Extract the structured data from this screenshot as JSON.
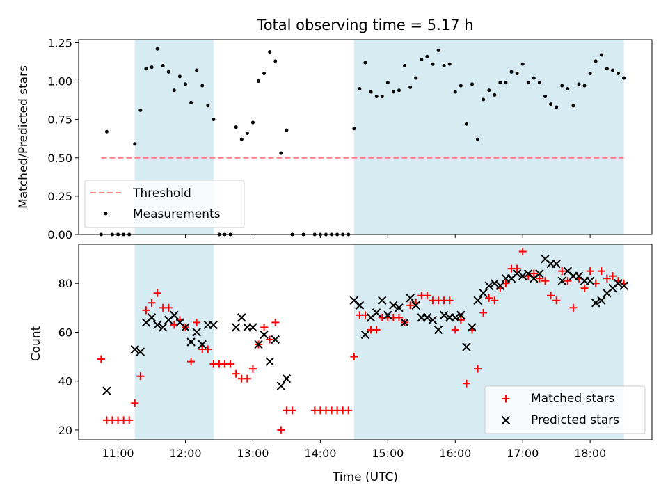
{
  "figure": {
    "title": "Total observing time = 5.17 h",
    "xlabel": "Time (UTC)"
  },
  "colors": {
    "shade": "#add8e6",
    "threshold": "#ff7f7f",
    "measurement": "#000000",
    "matched": "#ff0000",
    "predicted": "#000000"
  },
  "x_ticks": [
    "11:00",
    "12:00",
    "13:00",
    "14:00",
    "15:00",
    "16:00",
    "17:00",
    "18:00"
  ],
  "shaded_intervals": [
    [
      "11:15",
      "12:25"
    ],
    [
      "14:30",
      "18:30"
    ]
  ],
  "chart_data": [
    {
      "type": "scatter",
      "panel": "top",
      "ylabel": "Matched/Predicted stars",
      "ylim": [
        0,
        1.27
      ],
      "yticks": [
        "0.00",
        "0.25",
        "0.50",
        "0.75",
        "1.00",
        "1.25"
      ],
      "xlim": [
        "10:25",
        "18:55"
      ],
      "grid": false,
      "legend_position": "lower-left",
      "legend": [
        "Threshold",
        "Measurements"
      ],
      "threshold": {
        "name": "Threshold",
        "y": 0.5,
        "x": [
          "10:45",
          "18:30"
        ]
      },
      "series": [
        {
          "name": "Measurements",
          "points": [
            [
              "10:45",
              0
            ],
            [
              "10:50",
              0.67
            ],
            [
              "10:55",
              0
            ],
            [
              "11:00",
              0
            ],
            [
              "11:05",
              0
            ],
            [
              "11:10",
              0
            ],
            [
              "11:15",
              0.59
            ],
            [
              "11:20",
              0.81
            ],
            [
              "11:25",
              1.08
            ],
            [
              "11:30",
              1.09
            ],
            [
              "11:35",
              1.21
            ],
            [
              "11:40",
              1.1
            ],
            [
              "11:45",
              1.06
            ],
            [
              "11:50",
              0.94
            ],
            [
              "11:55",
              1.03
            ],
            [
              "12:00",
              0.98
            ],
            [
              "12:05",
              0.86
            ],
            [
              "12:10",
              1.07
            ],
            [
              "12:15",
              0.97
            ],
            [
              "12:20",
              0.84
            ],
            [
              "12:25",
              0.75
            ],
            [
              "12:30",
              0
            ],
            [
              "12:35",
              0
            ],
            [
              "12:40",
              0
            ],
            [
              "12:45",
              0.7
            ],
            [
              "12:50",
              0.62
            ],
            [
              "12:55",
              0.66
            ],
            [
              "13:00",
              0.73
            ],
            [
              "13:05",
              1.0
            ],
            [
              "13:10",
              1.05
            ],
            [
              "13:15",
              1.19
            ],
            [
              "13:20",
              1.13
            ],
            [
              "13:25",
              0.53
            ],
            [
              "13:30",
              0.68
            ],
            [
              "13:35",
              0
            ],
            [
              "13:45",
              0
            ],
            [
              "13:55",
              0
            ],
            [
              "14:00",
              0
            ],
            [
              "14:05",
              0
            ],
            [
              "14:10",
              0
            ],
            [
              "14:15",
              0
            ],
            [
              "14:20",
              0
            ],
            [
              "14:25",
              0
            ],
            [
              "14:30",
              0.69
            ],
            [
              "14:35",
              0.95
            ],
            [
              "14:40",
              1.12
            ],
            [
              "14:45",
              0.93
            ],
            [
              "14:50",
              0.9
            ],
            [
              "14:55",
              0.9
            ],
            [
              "15:00",
              0.99
            ],
            [
              "15:05",
              0.93
            ],
            [
              "15:10",
              0.94
            ],
            [
              "15:15",
              1.1
            ],
            [
              "15:20",
              0.96
            ],
            [
              "15:25",
              1.02
            ],
            [
              "15:30",
              1.14
            ],
            [
              "15:35",
              1.16
            ],
            [
              "15:40",
              1.11
            ],
            [
              "15:45",
              1.2
            ],
            [
              "15:50",
              1.1
            ],
            [
              "15:55",
              1.11
            ],
            [
              "16:00",
              0.93
            ],
            [
              "16:05",
              0.97
            ],
            [
              "16:10",
              0.72
            ],
            [
              "16:15",
              0.98
            ],
            [
              "16:20",
              0.62
            ],
            [
              "16:25",
              0.88
            ],
            [
              "16:30",
              0.94
            ],
            [
              "16:35",
              0.91
            ],
            [
              "16:40",
              0.99
            ],
            [
              "16:45",
              0.99
            ],
            [
              "16:50",
              1.06
            ],
            [
              "16:55",
              1.05
            ],
            [
              "17:00",
              1.11
            ],
            [
              "17:05",
              0.99
            ],
            [
              "17:10",
              1.02
            ],
            [
              "17:15",
              0.99
            ],
            [
              "17:20",
              0.9
            ],
            [
              "17:25",
              0.85
            ],
            [
              "17:30",
              0.83
            ],
            [
              "17:35",
              0.97
            ],
            [
              "17:40",
              0.95
            ],
            [
              "17:45",
              0.84
            ],
            [
              "17:50",
              0.98
            ],
            [
              "17:55",
              0.97
            ],
            [
              "18:00",
              1.05
            ],
            [
              "18:05",
              1.13
            ],
            [
              "18:10",
              1.17
            ],
            [
              "18:15",
              1.08
            ],
            [
              "18:20",
              1.07
            ],
            [
              "18:25",
              1.05
            ],
            [
              "18:30",
              1.02
            ]
          ]
        }
      ]
    },
    {
      "type": "scatter",
      "panel": "bottom",
      "ylabel": "Count",
      "xlabel": "Time (UTC)",
      "ylim": [
        16,
        96
      ],
      "yticks": [
        "20",
        "40",
        "60",
        "80"
      ],
      "xlim": [
        "10:25",
        "18:55"
      ],
      "grid": false,
      "legend_position": "lower-right",
      "legend": [
        "Matched stars",
        "Predicted stars"
      ],
      "series": [
        {
          "name": "Matched stars",
          "points": [
            [
              "10:45",
              49
            ],
            [
              "10:50",
              24
            ],
            [
              "10:55",
              24
            ],
            [
              "11:00",
              24
            ],
            [
              "11:05",
              24
            ],
            [
              "11:10",
              24
            ],
            [
              "11:15",
              31
            ],
            [
              "11:20",
              42
            ],
            [
              "11:25",
              69
            ],
            [
              "11:30",
              72
            ],
            [
              "11:35",
              76
            ],
            [
              "11:40",
              70
            ],
            [
              "11:45",
              70
            ],
            [
              "11:50",
              63
            ],
            [
              "11:55",
              65
            ],
            [
              "12:00",
              62
            ],
            [
              "12:05",
              48
            ],
            [
              "12:10",
              64
            ],
            [
              "12:15",
              53
            ],
            [
              "12:20",
              53
            ],
            [
              "12:25",
              47
            ],
            [
              "12:30",
              47
            ],
            [
              "12:35",
              47
            ],
            [
              "12:40",
              47
            ],
            [
              "12:45",
              43
            ],
            [
              "12:50",
              41
            ],
            [
              "12:55",
              41
            ],
            [
              "13:00",
              45
            ],
            [
              "13:05",
              55
            ],
            [
              "13:10",
              62
            ],
            [
              "13:15",
              57
            ],
            [
              "13:20",
              64
            ],
            [
              "13:25",
              20
            ],
            [
              "13:30",
              28
            ],
            [
              "13:35",
              28
            ],
            [
              "13:55",
              28
            ],
            [
              "14:00",
              28
            ],
            [
              "14:05",
              28
            ],
            [
              "14:10",
              28
            ],
            [
              "14:15",
              28
            ],
            [
              "14:20",
              28
            ],
            [
              "14:25",
              28
            ],
            [
              "14:30",
              50
            ],
            [
              "14:35",
              67
            ],
            [
              "14:40",
              67
            ],
            [
              "14:45",
              61
            ],
            [
              "14:50",
              61
            ],
            [
              "14:55",
              66
            ],
            [
              "15:00",
              66
            ],
            [
              "15:05",
              66
            ],
            [
              "15:10",
              66
            ],
            [
              "15:15",
              64
            ],
            [
              "15:20",
              71
            ],
            [
              "15:25",
              72
            ],
            [
              "15:30",
              75
            ],
            [
              "15:35",
              75
            ],
            [
              "15:40",
              73
            ],
            [
              "15:45",
              73
            ],
            [
              "15:50",
              73
            ],
            [
              "15:55",
              73
            ],
            [
              "16:00",
              61
            ],
            [
              "16:05",
              65
            ],
            [
              "16:10",
              39
            ],
            [
              "16:15",
              61
            ],
            [
              "16:20",
              45
            ],
            [
              "16:25",
              68
            ],
            [
              "16:30",
              74
            ],
            [
              "16:35",
              73
            ],
            [
              "16:40",
              78
            ],
            [
              "16:45",
              80
            ],
            [
              "16:50",
              86
            ],
            [
              "16:55",
              86
            ],
            [
              "17:00",
              93
            ],
            [
              "17:05",
              83
            ],
            [
              "17:10",
              84
            ],
            [
              "17:15",
              82
            ],
            [
              "17:20",
              81
            ],
            [
              "17:25",
              75
            ],
            [
              "17:30",
              73
            ],
            [
              "17:35",
              85
            ],
            [
              "17:40",
              81
            ],
            [
              "17:45",
              70
            ],
            [
              "17:50",
              82
            ],
            [
              "17:55",
              78
            ],
            [
              "18:00",
              85
            ],
            [
              "18:05",
              80
            ],
            [
              "18:10",
              85
            ],
            [
              "18:15",
              82
            ],
            [
              "18:20",
              83
            ],
            [
              "18:25",
              81
            ],
            [
              "18:30",
              80
            ]
          ]
        },
        {
          "name": "Predicted stars",
          "points": [
            [
              "10:50",
              36
            ],
            [
              "11:15",
              53
            ],
            [
              "11:20",
              52
            ],
            [
              "11:25",
              64
            ],
            [
              "11:30",
              66
            ],
            [
              "11:35",
              63
            ],
            [
              "11:40",
              62
            ],
            [
              "11:45",
              65
            ],
            [
              "11:50",
              67
            ],
            [
              "11:55",
              64
            ],
            [
              "12:00",
              62
            ],
            [
              "12:05",
              56
            ],
            [
              "12:10",
              60
            ],
            [
              "12:15",
              55
            ],
            [
              "12:20",
              63
            ],
            [
              "12:25",
              63
            ],
            [
              "12:45",
              62
            ],
            [
              "12:50",
              66
            ],
            [
              "12:55",
              62
            ],
            [
              "13:00",
              62
            ],
            [
              "13:05",
              55
            ],
            [
              "13:10",
              59
            ],
            [
              "13:15",
              48
            ],
            [
              "13:20",
              57
            ],
            [
              "13:25",
              38
            ],
            [
              "13:30",
              41
            ],
            [
              "14:30",
              73
            ],
            [
              "14:35",
              71
            ],
            [
              "14:40",
              59
            ],
            [
              "14:45",
              66
            ],
            [
              "14:50",
              68
            ],
            [
              "14:55",
              73
            ],
            [
              "15:00",
              67
            ],
            [
              "15:05",
              71
            ],
            [
              "15:10",
              70
            ],
            [
              "15:15",
              64
            ],
            [
              "15:20",
              74
            ],
            [
              "15:25",
              71
            ],
            [
              "15:30",
              66
            ],
            [
              "15:35",
              66
            ],
            [
              "15:40",
              65
            ],
            [
              "15:45",
              61
            ],
            [
              "15:50",
              67
            ],
            [
              "15:55",
              66
            ],
            [
              "16:00",
              66
            ],
            [
              "16:05",
              67
            ],
            [
              "16:10",
              54
            ],
            [
              "16:15",
              62
            ],
            [
              "16:20",
              73
            ],
            [
              "16:25",
              76
            ],
            [
              "16:30",
              79
            ],
            [
              "16:35",
              80
            ],
            [
              "16:40",
              79
            ],
            [
              "16:45",
              82
            ],
            [
              "16:50",
              82
            ],
            [
              "16:55",
              84
            ],
            [
              "17:00",
              83
            ],
            [
              "17:05",
              84
            ],
            [
              "17:10",
              82
            ],
            [
              "17:15",
              84
            ],
            [
              "17:20",
              90
            ],
            [
              "17:25",
              88
            ],
            [
              "17:30",
              88
            ],
            [
              "17:35",
              81
            ],
            [
              "17:40",
              85
            ],
            [
              "17:45",
              83
            ],
            [
              "17:50",
              83
            ],
            [
              "17:55",
              81
            ],
            [
              "18:00",
              81
            ],
            [
              "18:05",
              72
            ],
            [
              "18:10",
              73
            ],
            [
              "18:15",
              76
            ],
            [
              "18:20",
              78
            ],
            [
              "18:25",
              80
            ],
            [
              "18:30",
              79
            ]
          ]
        }
      ]
    }
  ]
}
